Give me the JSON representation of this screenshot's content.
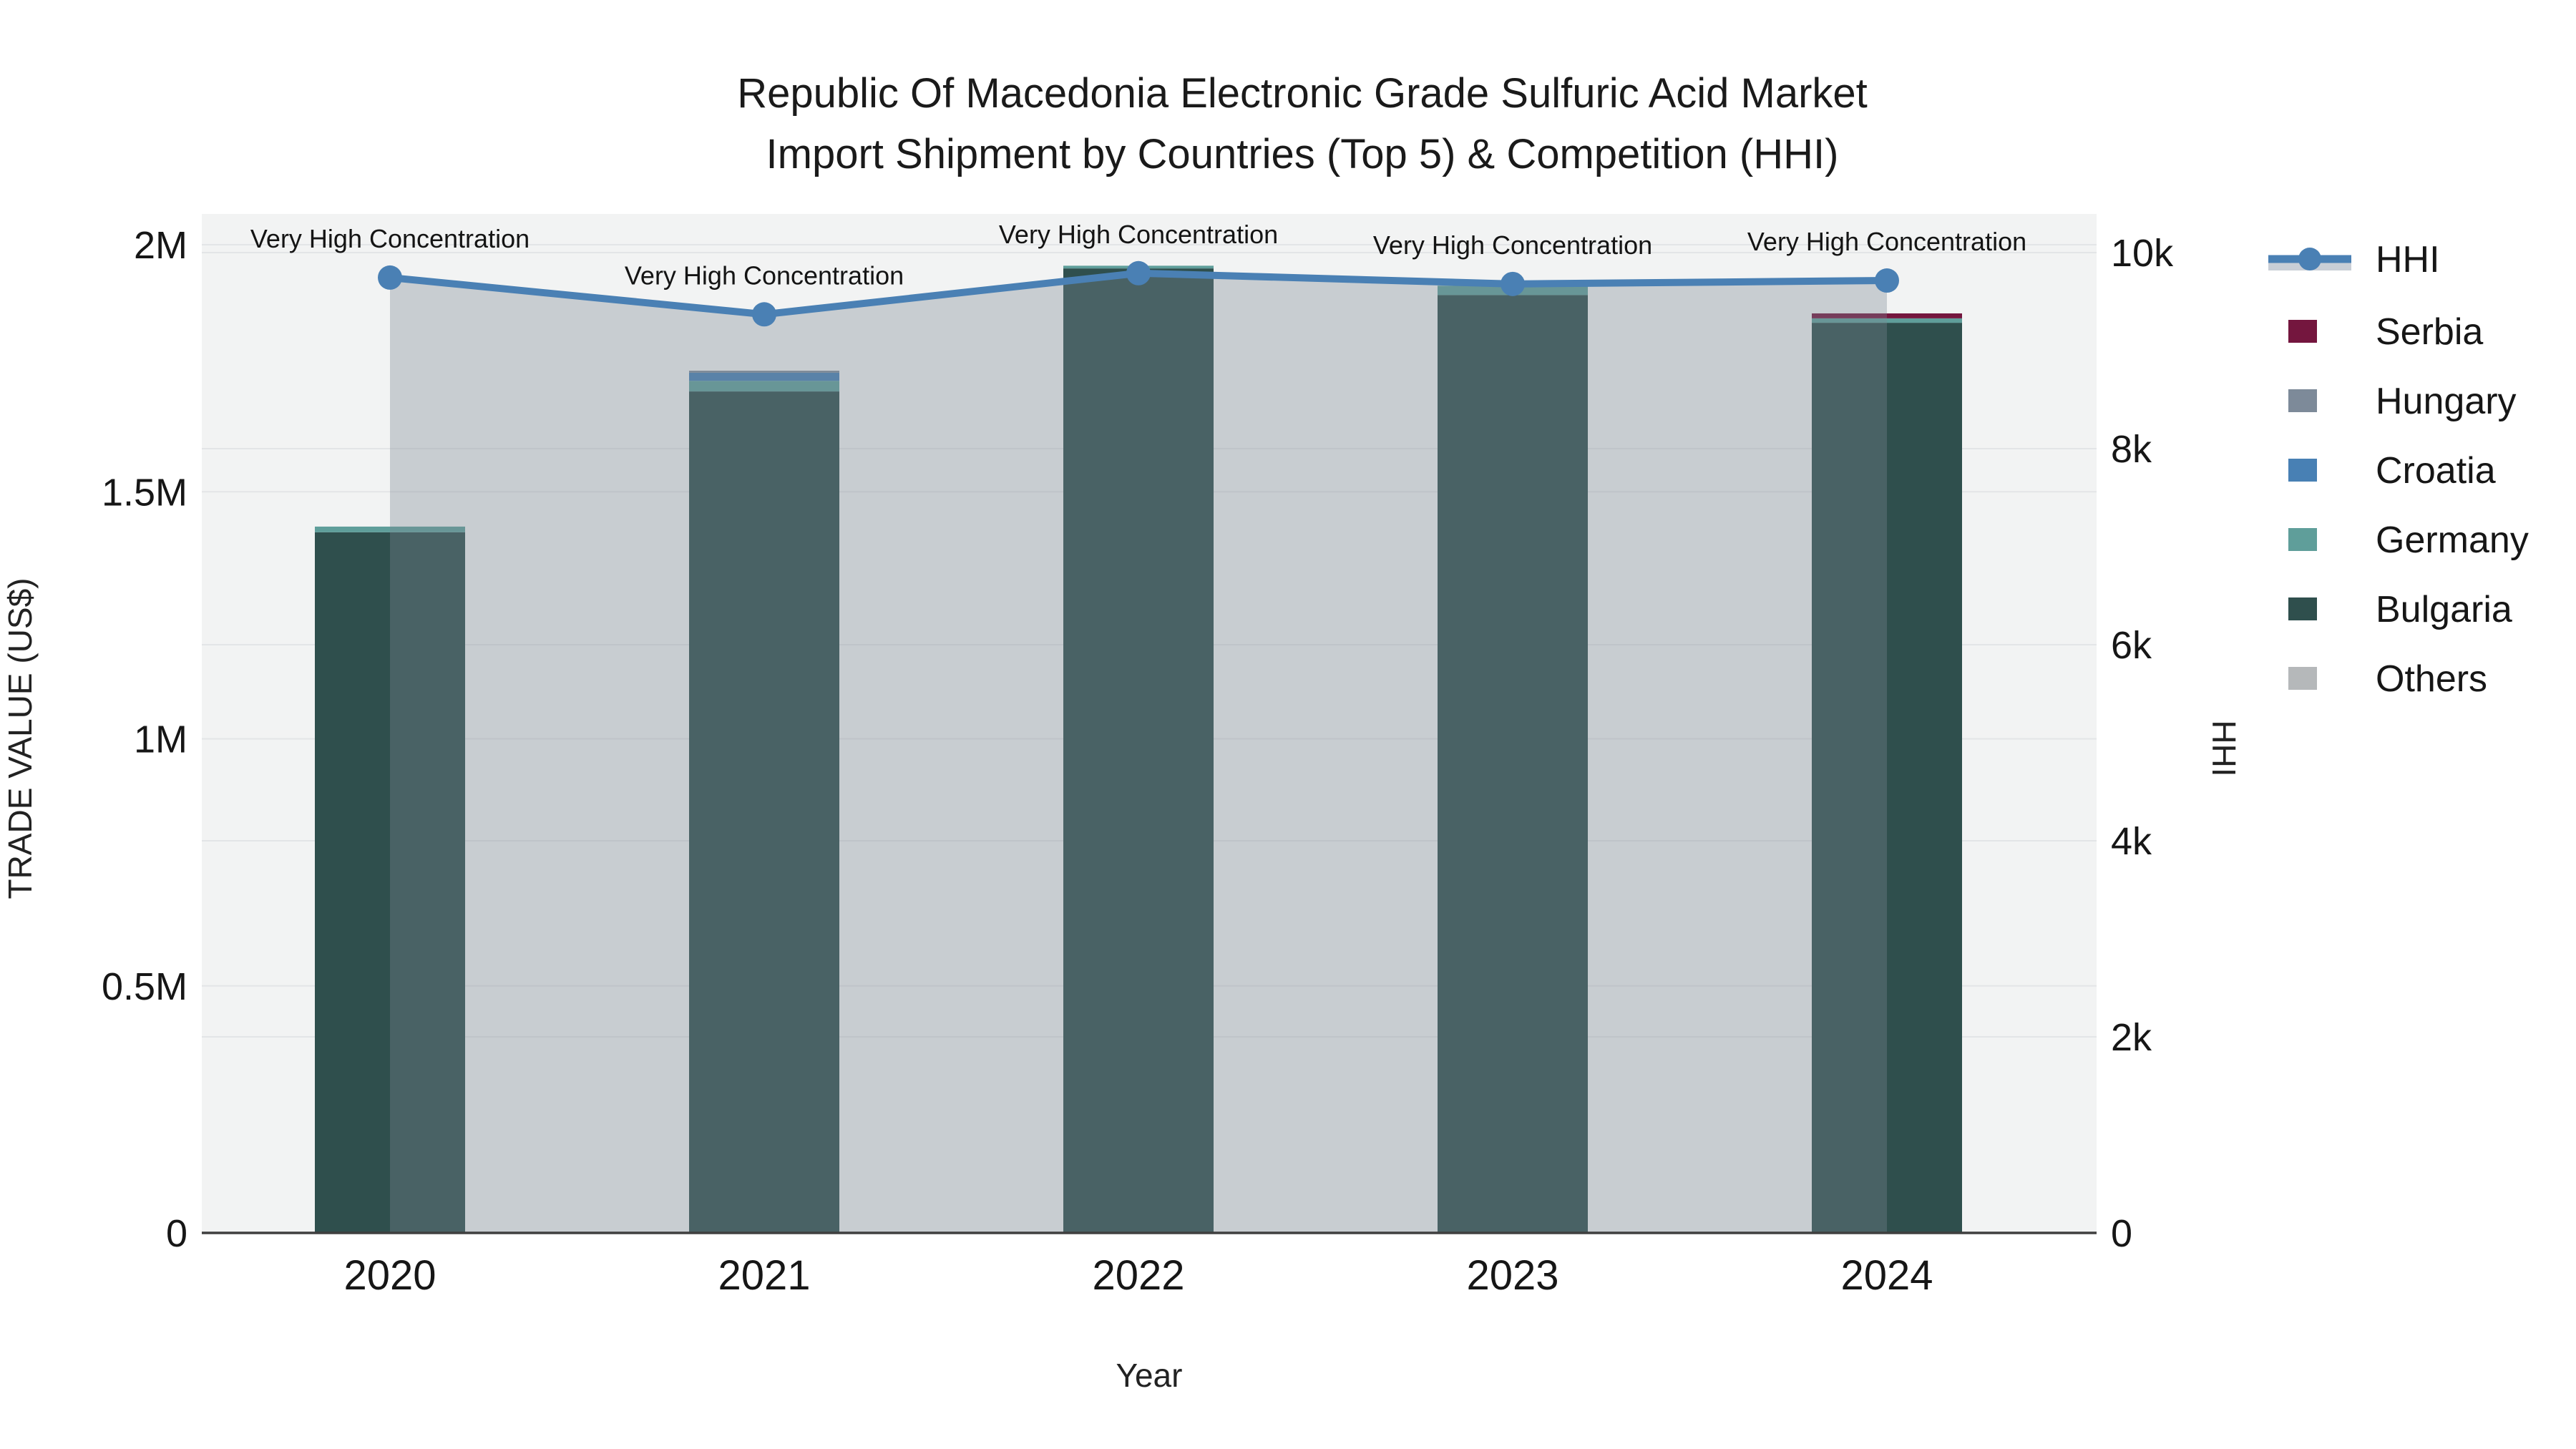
{
  "title": {
    "line1": "Republic Of Macedonia Electronic Grade Sulfuric Acid Market",
    "line2": "Import Shipment by Countries (Top 5) & Competition (HHI)"
  },
  "axes": {
    "left": {
      "title": "TRADE VALUE (US$)",
      "ticks": [
        {
          "label": "0",
          "value": 0
        },
        {
          "label": "0.5M",
          "value": 500000
        },
        {
          "label": "1M",
          "value": 1000000
        },
        {
          "label": "1.5M",
          "value": 1500000
        },
        {
          "label": "2M",
          "value": 2000000
        }
      ]
    },
    "right": {
      "title": "HHI",
      "ticks": [
        {
          "label": "0",
          "value": 0
        },
        {
          "label": "2k",
          "value": 2000
        },
        {
          "label": "4k",
          "value": 4000
        },
        {
          "label": "6k",
          "value": 6000
        },
        {
          "label": "8k",
          "value": 8000
        },
        {
          "label": "10k",
          "value": 10000
        }
      ]
    },
    "x": {
      "title": "Year"
    }
  },
  "legend": {
    "items": [
      {
        "label": "HHI",
        "type": "line",
        "color": "#4a80b4",
        "fill": "#c9ced6"
      },
      {
        "label": "Serbia",
        "type": "swatch",
        "color": "#74163e"
      },
      {
        "label": "Hungary",
        "type": "swatch",
        "color": "#7d8a99"
      },
      {
        "label": "Croatia",
        "type": "swatch",
        "color": "#4880b4"
      },
      {
        "label": "Germany",
        "type": "swatch",
        "color": "#5f9e9a"
      },
      {
        "label": "Bulgaria",
        "type": "swatch",
        "color": "#2f4f4d"
      },
      {
        "label": "Others",
        "type": "swatch",
        "color": "#b5b8ba"
      }
    ]
  },
  "chart_data": {
    "type": "bar+line",
    "title": "Republic Of Macedonia Electronic Grade Sulfuric Acid Market Import Shipment by Countries (Top 5) & Competition (HHI)",
    "xlabel": "Year",
    "ylabel": "TRADE VALUE (US$)",
    "y2label": "HHI",
    "ylim": [
      0,
      2000000
    ],
    "y2lim": [
      0,
      10000
    ],
    "grid": true,
    "legend_position": "right",
    "categories": [
      "2020",
      "2021",
      "2022",
      "2023",
      "2024"
    ],
    "series": [
      {
        "name": "Serbia",
        "color": "#74163e",
        "values": [
          0,
          0,
          0,
          0,
          10000
        ]
      },
      {
        "name": "Hungary",
        "color": "#7d8a99",
        "values": [
          0,
          4000,
          0,
          0,
          0
        ]
      },
      {
        "name": "Croatia",
        "color": "#4880b4",
        "values": [
          0,
          16500,
          0,
          0,
          0
        ]
      },
      {
        "name": "Germany",
        "color": "#5f9e9a",
        "values": [
          11500,
          21500,
          5500,
          19000,
          9000
        ]
      },
      {
        "name": "Bulgaria",
        "color": "#2f4f4d",
        "values": [
          1418000,
          1703000,
          1952000,
          1898000,
          1842000
        ]
      },
      {
        "name": "Others",
        "color": "#b5b8ba",
        "values": [
          0,
          0,
          0,
          0,
          0
        ]
      }
    ],
    "stack_totals": [
      1429500,
      1745000,
      1957500,
      1917000,
      1861000
    ],
    "line_series": {
      "name": "HHI",
      "axis": "right",
      "color": "#4a80b4",
      "fill_color": "rgba(123,135,145,0.35)",
      "values": [
        9745,
        9370,
        9790,
        9680,
        9715
      ]
    },
    "annotations": [
      {
        "x": "2020",
        "text": "Very High Concentration"
      },
      {
        "x": "2021",
        "text": "Very High Concentration"
      },
      {
        "x": "2022",
        "text": "Very High Concentration"
      },
      {
        "x": "2023",
        "text": "Very High Concentration"
      },
      {
        "x": "2024",
        "text": "Very High Concentration"
      }
    ]
  }
}
